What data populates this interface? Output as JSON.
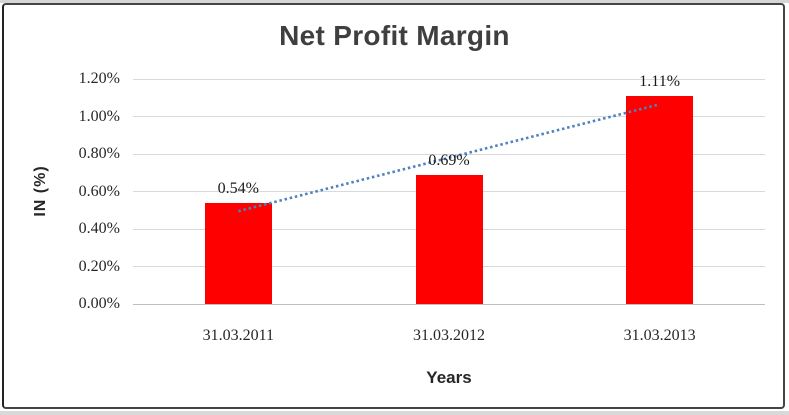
{
  "chart_data": {
    "type": "bar",
    "title": "Net Profit Margin",
    "xlabel": "Years",
    "ylabel": "IN (%)",
    "categories": [
      "31.03.2011",
      "31.03.2012",
      "31.03.2013"
    ],
    "values": [
      0.54,
      0.69,
      1.11
    ],
    "value_labels": [
      "0.54%",
      "0.69%",
      "1.11%"
    ],
    "ylim": [
      0,
      1.2
    ],
    "ytick_step": 0.2,
    "yticks": [
      "0.00%",
      "0.20%",
      "0.40%",
      "0.60%",
      "0.80%",
      "1.00%",
      "1.20%"
    ],
    "grid": true,
    "legend": "none",
    "bar_color": "#FF0000",
    "gridline_color": "#D9D9D9",
    "axis_line_color": "#BFBFBF",
    "tick_text_color": "#262626",
    "title_color": "#3F3F3F",
    "trendline": {
      "type": "linear",
      "style": "dotted",
      "color": "#4F81BD",
      "start_value": 0.495,
      "end_value": 1.065
    }
  }
}
